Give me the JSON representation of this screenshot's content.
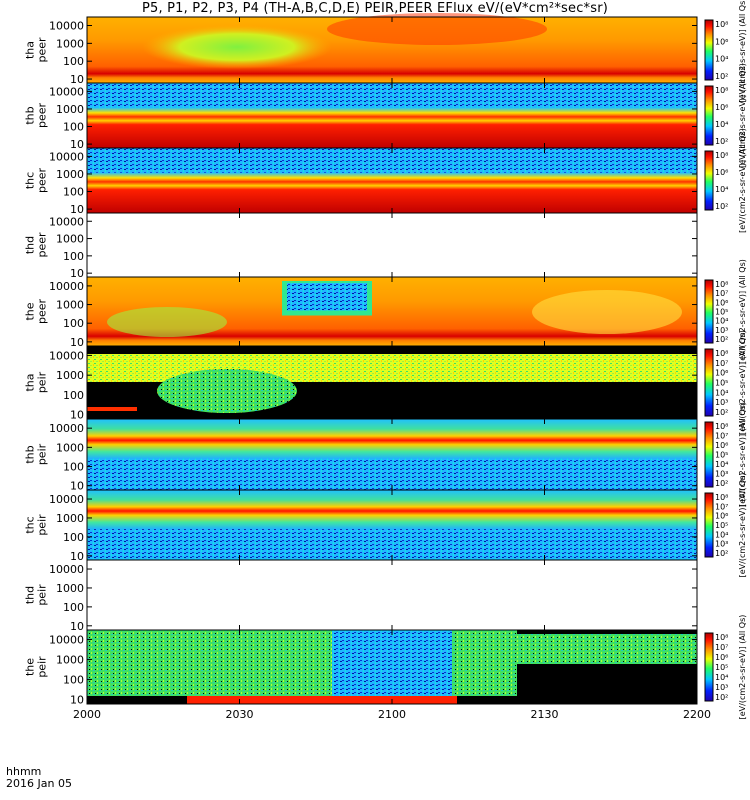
{
  "title": "P5, P1, P2, P3, P4 (TH-A,B,C,D,E) PEIR,PEER EFlux eV/(eV*cm²*sec*sr)",
  "time_axis_label": "hhmm",
  "date_label": "2016 Jan 05",
  "xticks": [
    "2000",
    "2030",
    "2100",
    "2130",
    "2200"
  ],
  "yticks": [
    "10000",
    "1000",
    "100",
    "10"
  ],
  "colorbar_ticks": [
    "10⁸",
    "10⁷",
    "10⁶",
    "10⁵",
    "10⁴",
    "10³",
    "10²"
  ],
  "colorbar_ticks_sparse": [
    "10⁸",
    "10⁶",
    "10⁴",
    "10²"
  ],
  "colorbar_label": "[eV/(cm2-s-sr-eV)] (All Qs)",
  "colors": {
    "high": "#d00000",
    "mid": "#ffd400",
    "low_mid": "#20e0ff",
    "low": "#1010c0"
  },
  "chart_data": [
    {
      "type": "heatmap",
      "panel": "tha peer",
      "probe": "tha",
      "species": "peer",
      "ylog": true,
      "yticks": [
        10000,
        1000,
        100,
        10
      ],
      "has_data": true,
      "colorbar": true
    },
    {
      "type": "heatmap",
      "panel": "thb peer",
      "probe": "thb",
      "species": "peer",
      "ylog": true,
      "yticks": [
        10000,
        1000,
        100,
        10
      ],
      "has_data": true,
      "colorbar": true
    },
    {
      "type": "heatmap",
      "panel": "thc peer",
      "probe": "thc",
      "species": "peer",
      "ylog": true,
      "yticks": [
        10000,
        1000,
        100,
        10
      ],
      "has_data": true,
      "colorbar": true
    },
    {
      "type": "heatmap",
      "panel": "thd peer",
      "probe": "thd",
      "species": "peer",
      "ylog": true,
      "yticks": [
        10000,
        1000,
        100,
        10
      ],
      "has_data": false,
      "colorbar": false
    },
    {
      "type": "heatmap",
      "panel": "the peer",
      "probe": "the",
      "species": "peer",
      "ylog": true,
      "yticks": [
        10000,
        1000,
        100,
        10
      ],
      "has_data": true,
      "colorbar": true
    },
    {
      "type": "heatmap",
      "panel": "tha peir",
      "probe": "tha",
      "species": "peir",
      "ylog": true,
      "yticks": [
        10000,
        1000,
        100,
        10
      ],
      "has_data": true,
      "colorbar": true
    },
    {
      "type": "heatmap",
      "panel": "thb peir",
      "probe": "thb",
      "species": "peir",
      "ylog": true,
      "yticks": [
        10000,
        1000,
        100,
        10
      ],
      "has_data": true,
      "colorbar": true
    },
    {
      "type": "heatmap",
      "panel": "thc peir",
      "probe": "thc",
      "species": "peir",
      "ylog": true,
      "yticks": [
        10000,
        1000,
        100,
        10
      ],
      "has_data": true,
      "colorbar": true
    },
    {
      "type": "heatmap",
      "panel": "thd peir",
      "probe": "thd",
      "species": "peir",
      "ylog": true,
      "yticks": [
        10000,
        1000,
        100,
        10
      ],
      "has_data": false,
      "colorbar": false
    },
    {
      "type": "heatmap",
      "panel": "the peir",
      "probe": "the",
      "species": "peir",
      "ylog": true,
      "yticks": [
        10000,
        1000,
        100,
        10
      ],
      "has_data": true,
      "colorbar": true
    }
  ]
}
